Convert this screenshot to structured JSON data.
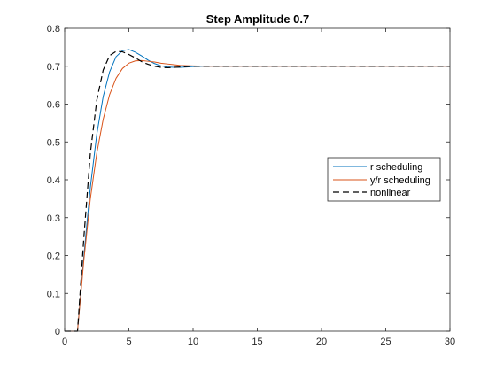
{
  "chart_data": {
    "type": "line",
    "title": "Step Amplitude 0.7",
    "xlabel": "",
    "ylabel": "",
    "xlim": [
      0,
      30
    ],
    "ylim": [
      0,
      0.8
    ],
    "x_ticks": [
      0,
      5,
      10,
      15,
      20,
      25,
      30
    ],
    "y_ticks": [
      0,
      0.1,
      0.2,
      0.3,
      0.4,
      0.5,
      0.6,
      0.7,
      0.8
    ],
    "x_tick_labels": [
      "0",
      "5",
      "10",
      "15",
      "20",
      "25",
      "30"
    ],
    "y_tick_labels": [
      "0",
      "0.1",
      "0.2",
      "0.3",
      "0.4",
      "0.5",
      "0.6",
      "0.7",
      "0.8"
    ],
    "grid": false,
    "legend_position": "right-middle",
    "series": [
      {
        "name": "r scheduling",
        "color": "#0072BD",
        "dash": "solid",
        "x": [
          0,
          1,
          1.5,
          2,
          2.5,
          3,
          3.5,
          4,
          4.5,
          5,
          5.5,
          6,
          6.5,
          7,
          7.5,
          8,
          8.5,
          9,
          9.5,
          10,
          11,
          12,
          13,
          15,
          20,
          25,
          30
        ],
        "y": [
          0,
          0,
          0.2,
          0.38,
          0.52,
          0.62,
          0.685,
          0.725,
          0.741,
          0.744,
          0.737,
          0.727,
          0.716,
          0.707,
          0.701,
          0.698,
          0.697,
          0.697,
          0.698,
          0.699,
          0.7,
          0.7,
          0.7,
          0.7,
          0.7,
          0.7,
          0.7
        ]
      },
      {
        "name": "y/r scheduling",
        "color": "#D95319",
        "dash": "solid",
        "x": [
          0,
          1,
          1.5,
          2,
          2.5,
          3,
          3.5,
          4,
          4.5,
          5,
          5.5,
          6,
          6.5,
          7,
          7.5,
          8,
          8.5,
          9,
          10,
          11,
          12,
          15,
          20,
          25,
          30
        ],
        "y": [
          0,
          0,
          0.19,
          0.35,
          0.47,
          0.56,
          0.625,
          0.668,
          0.694,
          0.708,
          0.714,
          0.715,
          0.713,
          0.711,
          0.708,
          0.706,
          0.704,
          0.702,
          0.701,
          0.7,
          0.7,
          0.7,
          0.7,
          0.7,
          0.7
        ]
      },
      {
        "name": "nonlinear",
        "color": "#000000",
        "dash": "dashed",
        "x": [
          0,
          1,
          1.5,
          2,
          2.5,
          3,
          3.5,
          4,
          4.5,
          5,
          5.5,
          6,
          6.5,
          7,
          7.5,
          8,
          8.5,
          9,
          10,
          11,
          12,
          15,
          20,
          25,
          30
        ],
        "y": [
          0,
          0,
          0.25,
          0.47,
          0.61,
          0.69,
          0.728,
          0.739,
          0.738,
          0.731,
          0.722,
          0.712,
          0.705,
          0.7,
          0.697,
          0.696,
          0.697,
          0.698,
          0.7,
          0.7,
          0.7,
          0.7,
          0.7,
          0.7,
          0.7
        ]
      }
    ]
  }
}
